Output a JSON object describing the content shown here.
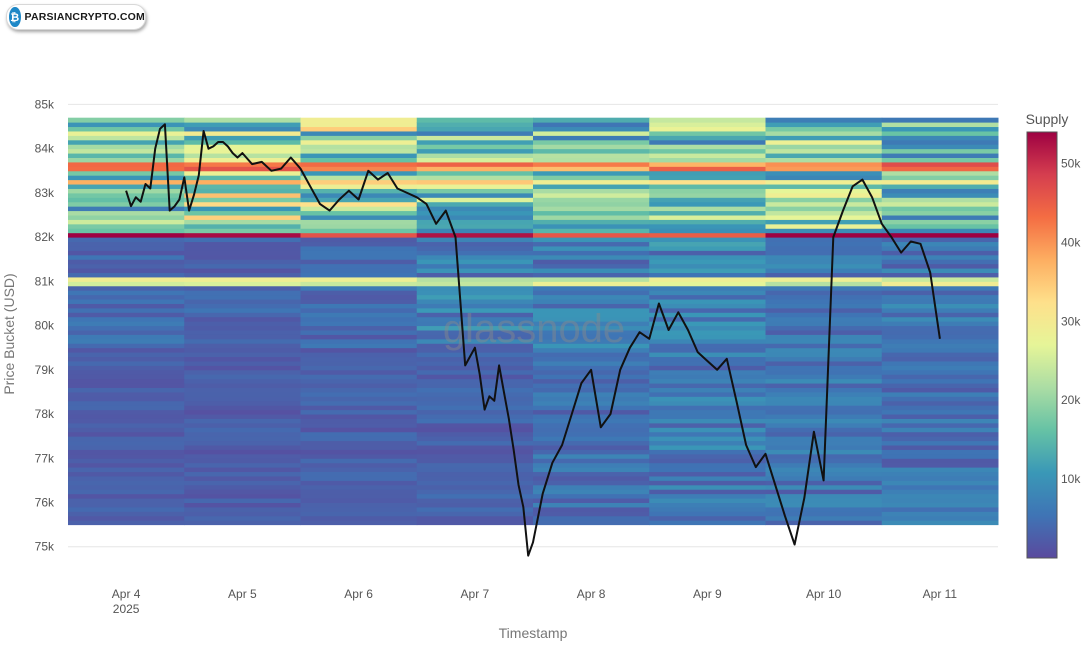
{
  "logo": {
    "text": "PARSIANCRYPTO.COM",
    "icon": "crypto-coin-icon",
    "color": "#1e88c7"
  },
  "watermark": "glassnode",
  "chart_data": {
    "type": "heatmap",
    "overlay": "line",
    "title": "",
    "xlabel": "Timestamp",
    "ylabel": "Price Bucket (USD)",
    "ylim": [
      74700,
      85100
    ],
    "yticks": [
      75000,
      76000,
      77000,
      78000,
      79000,
      80000,
      81000,
      82000,
      83000,
      84000,
      85000
    ],
    "ytick_labels": [
      "75k",
      "76k",
      "77k",
      "78k",
      "79k",
      "80k",
      "81k",
      "82k",
      "83k",
      "84k",
      "85k"
    ],
    "xlim": [
      "2025-04-03T12:00",
      "2025-04-11T12:00"
    ],
    "xticks": [
      "2025-04-04",
      "2025-04-05",
      "2025-04-06",
      "2025-04-07",
      "2025-04-08",
      "2025-04-09",
      "2025-04-10",
      "2025-04-11"
    ],
    "xtick_labels": [
      "Apr 4",
      "Apr 5",
      "Apr 6",
      "Apr 7",
      "Apr 8",
      "Apr 9",
      "Apr 10",
      "Apr 11"
    ],
    "xtick_year": "2025",
    "colorbar": {
      "title": "Supply",
      "min": 0,
      "max": 54000,
      "ticks": [
        10000,
        20000,
        30000,
        40000,
        50000
      ],
      "tick_labels": [
        "10k",
        "20k",
        "30k",
        "40k",
        "50k"
      ],
      "colors": [
        "#5a4a9e",
        "#3f74b5",
        "#3a98b7",
        "#66c2a5",
        "#abdda4",
        "#e6f598",
        "#fee08b",
        "#fdae61",
        "#f46d43",
        "#d53e4f",
        "#9e0142"
      ]
    },
    "heatmap_ybins": [
      75500,
      84700
    ],
    "heatmap_columns": [
      {
        "start": "2025-04-03T12:00",
        "end": "2025-04-04T12:00",
        "upper": 17000,
        "mid": 4500,
        "lower": 2500
      },
      {
        "start": "2025-04-04T12:00",
        "end": "2025-04-05T12:00",
        "upper": 22000,
        "mid": 3500,
        "lower": 2500
      },
      {
        "start": "2025-04-05T12:00",
        "end": "2025-04-06T12:00",
        "upper": 21000,
        "mid": 4000,
        "lower": 2800
      },
      {
        "start": "2025-04-06T12:00",
        "end": "2025-04-07T12:00",
        "upper": 18000,
        "mid": 7000,
        "lower": 3000
      },
      {
        "start": "2025-04-07T12:00",
        "end": "2025-04-08T12:00",
        "upper": 16000,
        "mid": 6500,
        "lower": 5000
      },
      {
        "start": "2025-04-08T12:00",
        "end": "2025-04-09T12:00",
        "upper": 17000,
        "mid": 7500,
        "lower": 6500
      },
      {
        "start": "2025-04-09T12:00",
        "end": "2025-04-10T12:00",
        "upper": 18000,
        "mid": 6000,
        "lower": 5500
      },
      {
        "start": "2025-04-10T12:00",
        "end": "2025-04-11T12:00",
        "upper": 17000,
        "mid": 6000,
        "lower": 5500
      }
    ],
    "heatmap_bands": [
      {
        "price": 83600,
        "value": 42000
      },
      {
        "price": 83250,
        "value": 33000
      },
      {
        "price": 82050,
        "value": 50000
      },
      {
        "price": 81000,
        "value": 26000
      }
    ],
    "price_series": {
      "color": "#111111",
      "x": [
        "2025-04-04T00:00",
        "2025-04-04T01:00",
        "2025-04-04T02:00",
        "2025-04-04T03:00",
        "2025-04-04T04:00",
        "2025-04-04T05:00",
        "2025-04-04T06:00",
        "2025-04-04T07:00",
        "2025-04-04T08:00",
        "2025-04-04T09:00",
        "2025-04-04T10:00",
        "2025-04-04T11:00",
        "2025-04-04T12:00",
        "2025-04-04T13:00",
        "2025-04-04T14:00",
        "2025-04-04T15:00",
        "2025-04-04T16:00",
        "2025-04-04T17:00",
        "2025-04-04T18:00",
        "2025-04-04T19:00",
        "2025-04-04T20:00",
        "2025-04-04T21:00",
        "2025-04-04T22:00",
        "2025-04-04T23:00",
        "2025-04-05T00:00",
        "2025-04-05T02:00",
        "2025-04-05T04:00",
        "2025-04-05T06:00",
        "2025-04-05T08:00",
        "2025-04-05T10:00",
        "2025-04-05T12:00",
        "2025-04-05T14:00",
        "2025-04-05T16:00",
        "2025-04-05T18:00",
        "2025-04-05T20:00",
        "2025-04-05T22:00",
        "2025-04-06T00:00",
        "2025-04-06T02:00",
        "2025-04-06T04:00",
        "2025-04-06T06:00",
        "2025-04-06T08:00",
        "2025-04-06T10:00",
        "2025-04-06T12:00",
        "2025-04-06T14:00",
        "2025-04-06T16:00",
        "2025-04-06T18:00",
        "2025-04-06T20:00",
        "2025-04-06T22:00",
        "2025-04-07T00:00",
        "2025-04-07T01:00",
        "2025-04-07T02:00",
        "2025-04-07T03:00",
        "2025-04-07T04:00",
        "2025-04-07T05:00",
        "2025-04-07T06:00",
        "2025-04-07T07:00",
        "2025-04-07T08:00",
        "2025-04-07T09:00",
        "2025-04-07T10:00",
        "2025-04-07T11:00",
        "2025-04-07T12:00",
        "2025-04-07T14:00",
        "2025-04-07T16:00",
        "2025-04-07T18:00",
        "2025-04-07T20:00",
        "2025-04-07T22:00",
        "2025-04-08T00:00",
        "2025-04-08T02:00",
        "2025-04-08T04:00",
        "2025-04-08T06:00",
        "2025-04-08T08:00",
        "2025-04-08T10:00",
        "2025-04-08T12:00",
        "2025-04-08T14:00",
        "2025-04-08T16:00",
        "2025-04-08T18:00",
        "2025-04-08T20:00",
        "2025-04-08T22:00",
        "2025-04-09T00:00",
        "2025-04-09T02:00",
        "2025-04-09T04:00",
        "2025-04-09T06:00",
        "2025-04-09T08:00",
        "2025-04-09T10:00",
        "2025-04-09T12:00",
        "2025-04-09T14:00",
        "2025-04-09T16:00",
        "2025-04-09T18:00",
        "2025-04-09T20:00",
        "2025-04-09T22:00",
        "2025-04-10T00:00",
        "2025-04-10T02:00",
        "2025-04-10T04:00",
        "2025-04-10T06:00",
        "2025-04-10T08:00",
        "2025-04-10T10:00",
        "2025-04-10T12:00",
        "2025-04-10T14:00",
        "2025-04-10T16:00",
        "2025-04-10T18:00",
        "2025-04-10T20:00",
        "2025-04-10T22:00",
        "2025-04-11T00:00"
      ],
      "y": [
        83050,
        82700,
        82900,
        82800,
        83200,
        83100,
        84000,
        84450,
        84550,
        82600,
        82700,
        82850,
        83350,
        82600,
        82950,
        83400,
        84400,
        84000,
        84050,
        84150,
        84150,
        84050,
        83900,
        83800,
        83900,
        83650,
        83700,
        83500,
        83550,
        83800,
        83550,
        83150,
        82750,
        82600,
        82850,
        83050,
        82850,
        83500,
        83300,
        83450,
        83100,
        83000,
        82900,
        82750,
        82300,
        82600,
        82000,
        79100,
        79500,
        78900,
        78100,
        78400,
        78300,
        79100,
        78500,
        77900,
        77200,
        76400,
        75900,
        74800,
        75100,
        76200,
        76900,
        77300,
        78000,
        78700,
        79000,
        77700,
        78000,
        79000,
        79500,
        79850,
        79700,
        80500,
        79900,
        80300,
        79900,
        79400,
        79200,
        79000,
        79250,
        78300,
        77300,
        76800,
        77100,
        76400,
        75700,
        75050,
        76100,
        77600,
        76500,
        82000,
        82600,
        83150,
        83300,
        82900,
        82300,
        82000,
        81650,
        81900,
        81850,
        81200,
        79700
      ]
    }
  }
}
